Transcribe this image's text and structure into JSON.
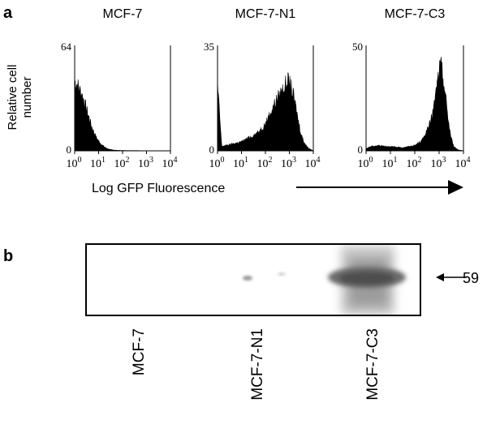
{
  "panel_a": {
    "letter": "a",
    "ylabel_line1": "Relative cell",
    "ylabel_line2": "number",
    "xlabel": "Log GFP Fluorescence"
  },
  "panel_b": {
    "letter": "b",
    "marker_label": "59",
    "lanes": [
      "MCF-7",
      "MCF-7-N1",
      "MCF-7-C3"
    ]
  },
  "chart_data": [
    {
      "type": "area",
      "title": "MCF-7",
      "xscale": "log",
      "xlim": [
        1,
        10000
      ],
      "ylim": [
        0,
        64
      ],
      "ytick_labels": [
        "0",
        "64"
      ],
      "x": [
        1,
        1.3,
        1.6,
        2,
        2.5,
        3,
        4,
        5,
        6.5,
        8,
        10,
        13,
        16,
        20,
        25,
        30,
        40,
        60,
        100,
        1000,
        10000
      ],
      "values": [
        42,
        40,
        37,
        34,
        30,
        26,
        20,
        15,
        11,
        8,
        6,
        4,
        2.8,
        1.8,
        1.2,
        0.8,
        0.5,
        0.3,
        0.2,
        0.1,
        0
      ]
    },
    {
      "type": "area",
      "title": "MCF-7-N1",
      "xscale": "log",
      "xlim": [
        1,
        10000
      ],
      "ylim": [
        0,
        35
      ],
      "ytick_labels": [
        "0",
        "35"
      ],
      "x": [
        1,
        1.5,
        3,
        10,
        30,
        50,
        100,
        200,
        300,
        500,
        700,
        900,
        1200,
        1600,
        2000,
        2500,
        3000,
        4000,
        6000,
        10000
      ],
      "values": [
        22,
        1.5,
        2,
        3,
        5,
        6,
        9,
        14,
        17,
        20,
        22,
        23,
        21,
        17,
        13,
        9,
        6,
        3,
        1,
        0
      ]
    },
    {
      "type": "area",
      "title": "MCF-7-C3",
      "xscale": "log",
      "xlim": [
        1,
        10000
      ],
      "ylim": [
        0,
        50
      ],
      "ytick_labels": [
        "0",
        "50"
      ],
      "x": [
        1,
        1.5,
        3,
        10,
        30,
        100,
        200,
        400,
        600,
        800,
        1000,
        1200,
        1500,
        2000,
        2500,
        3000,
        4000,
        6000,
        10000
      ],
      "values": [
        1,
        2,
        2.5,
        2,
        1.5,
        2.5,
        5,
        12,
        20,
        30,
        38,
        40,
        34,
        22,
        13,
        7,
        2,
        0.5,
        0
      ]
    }
  ]
}
